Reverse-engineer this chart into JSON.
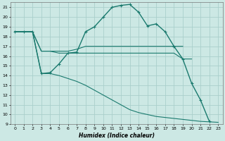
{
  "xlabel": "Humidex (Indice chaleur)",
  "bg_color": "#cce8e4",
  "grid_color": "#aacfcb",
  "line_color": "#1a7a6e",
  "xlim": [
    -0.5,
    23.5
  ],
  "ylim": [
    9,
    21.5
  ],
  "xticks": [
    0,
    1,
    2,
    3,
    4,
    5,
    6,
    7,
    8,
    9,
    10,
    11,
    12,
    13,
    14,
    15,
    16,
    17,
    18,
    19,
    20,
    21,
    22,
    23
  ],
  "yticks": [
    9,
    10,
    11,
    12,
    13,
    14,
    15,
    16,
    17,
    18,
    19,
    20,
    21
  ],
  "series": [
    {
      "x": [
        0,
        1,
        2,
        3,
        4,
        5,
        6,
        7,
        8,
        9,
        10,
        11,
        12,
        13,
        14,
        15,
        16,
        17,
        18,
        19,
        20,
        21,
        22
      ],
      "y": [
        18.5,
        18.5,
        18.5,
        14.2,
        14.3,
        15.2,
        16.3,
        16.4,
        18.5,
        19.0,
        20.0,
        21.0,
        21.2,
        21.3,
        20.5,
        19.1,
        19.3,
        18.5,
        17.0,
        15.7,
        13.2,
        11.5,
        9.3
      ],
      "marker": true,
      "lw": 1.0
    },
    {
      "x": [
        0,
        1,
        2,
        3,
        4,
        5,
        6,
        7,
        8,
        9,
        10,
        11,
        12,
        13,
        14,
        15,
        16,
        17,
        18,
        19
      ],
      "y": [
        18.5,
        18.5,
        18.5,
        16.5,
        16.5,
        16.5,
        16.5,
        16.7,
        17.0,
        17.0,
        17.0,
        17.0,
        17.0,
        17.0,
        17.0,
        17.0,
        17.0,
        17.0,
        17.0,
        17.0
      ],
      "marker": false,
      "lw": 0.8
    },
    {
      "x": [
        0,
        1,
        2,
        3,
        4,
        5,
        6,
        7,
        8,
        9,
        10,
        11,
        12,
        13,
        14,
        15,
        16,
        17,
        18,
        19,
        20
      ],
      "y": [
        18.5,
        18.5,
        18.5,
        16.5,
        16.5,
        16.3,
        16.3,
        16.3,
        16.3,
        16.3,
        16.3,
        16.3,
        16.3,
        16.3,
        16.3,
        16.3,
        16.3,
        16.3,
        16.3,
        15.7,
        15.7
      ],
      "marker": false,
      "lw": 0.8
    },
    {
      "x": [
        0,
        1,
        2,
        3,
        4,
        5,
        6,
        7,
        8,
        9,
        10,
        11,
        12,
        13,
        14,
        15,
        16,
        17,
        18,
        19,
        20,
        21,
        22,
        23
      ],
      "y": [
        18.5,
        18.5,
        18.5,
        14.2,
        14.2,
        14.0,
        13.7,
        13.4,
        13.0,
        12.5,
        12.0,
        11.5,
        11.0,
        10.5,
        10.2,
        10.0,
        9.8,
        9.7,
        9.6,
        9.5,
        9.4,
        9.3,
        9.25,
        9.2
      ],
      "marker": false,
      "lw": 0.8
    }
  ]
}
